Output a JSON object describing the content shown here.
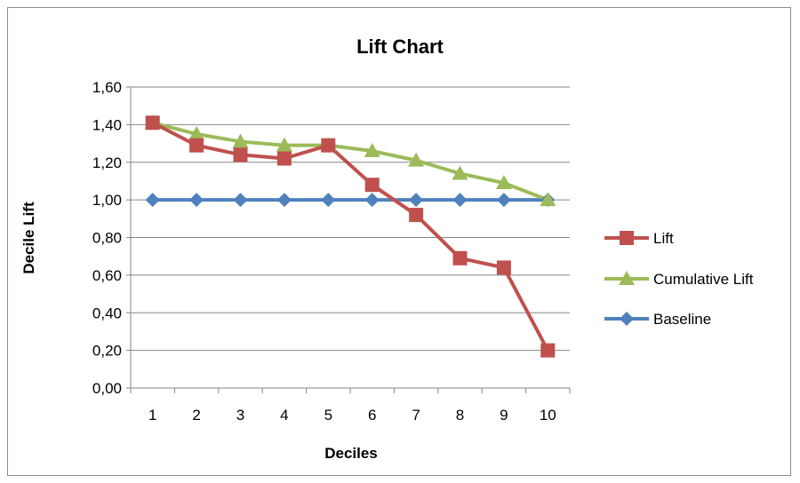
{
  "chart_data": {
    "type": "line",
    "title": "Lift Chart",
    "xlabel": "Deciles",
    "ylabel": "Decile Lift",
    "categories": [
      "1",
      "2",
      "3",
      "4",
      "5",
      "6",
      "7",
      "8",
      "9",
      "10"
    ],
    "y_ticks": [
      "0,00",
      "0,20",
      "0,40",
      "0,60",
      "0,80",
      "1,00",
      "1,20",
      "1,40",
      "1,60"
    ],
    "ylim": [
      0,
      1.6
    ],
    "grid": "horizontal",
    "legend_position": "right",
    "series": [
      {
        "name": "Lift",
        "color": "#C0504D",
        "marker": "square",
        "values": [
          1.41,
          1.29,
          1.24,
          1.22,
          1.29,
          1.08,
          0.92,
          0.69,
          0.64,
          0.2
        ]
      },
      {
        "name": "Cumulative Lift",
        "color": "#9BBB59",
        "marker": "triangle",
        "values": [
          1.41,
          1.35,
          1.31,
          1.29,
          1.29,
          1.26,
          1.21,
          1.14,
          1.09,
          1.0
        ]
      },
      {
        "name": "Baseline",
        "color": "#4F81BD",
        "marker": "diamond",
        "values": [
          1.0,
          1.0,
          1.0,
          1.0,
          1.0,
          1.0,
          1.0,
          1.0,
          1.0,
          1.0
        ]
      }
    ]
  }
}
